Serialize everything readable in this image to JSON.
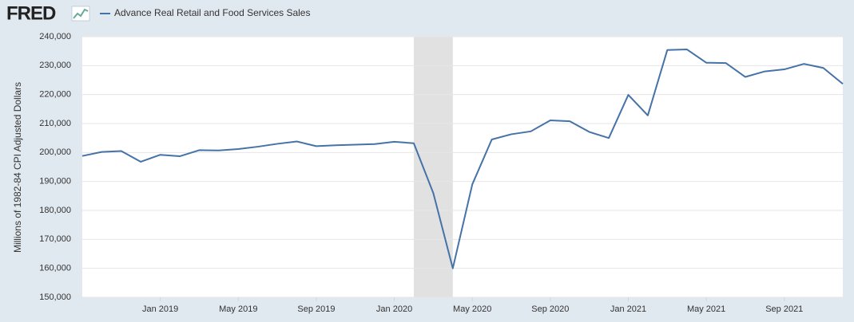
{
  "logo": "FRED",
  "chart_data": {
    "type": "line",
    "y_label": "Millions of 1982-84 CPI Adjusted Dollars",
    "x": [
      "2018-09",
      "2018-10",
      "2018-11",
      "2018-12",
      "2019-01",
      "2019-02",
      "2019-03",
      "2019-04",
      "2019-05",
      "2019-06",
      "2019-07",
      "2019-08",
      "2019-09",
      "2019-10",
      "2019-11",
      "2019-12",
      "2020-01",
      "2020-02",
      "2020-03",
      "2020-04",
      "2020-05",
      "2020-06",
      "2020-07",
      "2020-08",
      "2020-09",
      "2020-10",
      "2020-11",
      "2020-12",
      "2021-01",
      "2021-02",
      "2021-03",
      "2021-04",
      "2021-05",
      "2021-06",
      "2021-07",
      "2021-08",
      "2021-09",
      "2021-10",
      "2021-11",
      "2021-12"
    ],
    "series": [
      {
        "name": "Advance Real Retail and Food Services Sales",
        "color": "#4572a7",
        "values": [
          198800,
          200200,
          200500,
          196800,
          199200,
          198700,
          200800,
          200700,
          201200,
          202000,
          203000,
          203800,
          202200,
          202500,
          202700,
          202900,
          203700,
          203200,
          186000,
          160000,
          189000,
          204500,
          206300,
          207300,
          211100,
          210800,
          207100,
          205000,
          219900,
          212800,
          235400,
          235600,
          231000,
          230900,
          226100,
          228000,
          228700,
          230600,
          229200,
          223700
        ]
      }
    ],
    "xlim": [
      "2018-09",
      "2021-12"
    ],
    "xticks": [
      {
        "value": "2019-01",
        "label": "Jan 2019"
      },
      {
        "value": "2019-05",
        "label": "May 2019"
      },
      {
        "value": "2019-09",
        "label": "Sep 2019"
      },
      {
        "value": "2020-01",
        "label": "Jan 2020"
      },
      {
        "value": "2020-05",
        "label": "May 2020"
      },
      {
        "value": "2020-09",
        "label": "Sep 2020"
      },
      {
        "value": "2021-01",
        "label": "Jan 2021"
      },
      {
        "value": "2021-05",
        "label": "May 2021"
      },
      {
        "value": "2021-09",
        "label": "Sep 2021"
      }
    ],
    "ylim": [
      150000,
      240000
    ],
    "yticks": [
      {
        "value": 150000,
        "label": "150,000"
      },
      {
        "value": 160000,
        "label": "160,000"
      },
      {
        "value": 170000,
        "label": "170,000"
      },
      {
        "value": 180000,
        "label": "180,000"
      },
      {
        "value": 190000,
        "label": "190,000"
      },
      {
        "value": 200000,
        "label": "200,000"
      },
      {
        "value": 210000,
        "label": "210,000"
      },
      {
        "value": 220000,
        "label": "220,000"
      },
      {
        "value": 230000,
        "label": "230,000"
      },
      {
        "value": 240000,
        "label": "240,000"
      }
    ],
    "shaded": [
      "2020-02",
      "2020-04"
    ],
    "grid": true
  }
}
